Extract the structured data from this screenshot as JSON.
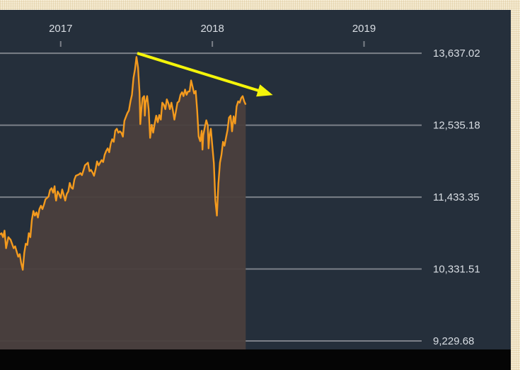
{
  "chart_data": {
    "type": "area",
    "title": "",
    "xlabel": "",
    "ylabel": "",
    "x_tick_labels": [
      "2017",
      "2018",
      "2019"
    ],
    "y_tick_labels": [
      "13,637.02",
      "12,535.18",
      "11,433.35",
      "10,331.51",
      "9,229.68"
    ],
    "y_ticks": [
      13637.02,
      12535.18,
      11433.35,
      10331.51,
      9229.68
    ],
    "ylim": [
      9100,
      14300
    ],
    "xlim": [
      2016.6,
      2019.38
    ],
    "grid": true,
    "colors": {
      "line": "#f39a1e",
      "area": "#4a3f3d",
      "trendline": "#f4f40a",
      "grid": "#7b8088",
      "plot_background": "#252f3b"
    },
    "series": [
      {
        "points": [
          [
            2016.6,
            10860
          ],
          [
            2016.61,
            10880
          ],
          [
            2016.62,
            10820
          ],
          [
            2016.63,
            10920
          ],
          [
            2016.64,
            10650
          ],
          [
            2016.655,
            10820
          ],
          [
            2016.67,
            10780
          ],
          [
            2016.69,
            10650
          ],
          [
            2016.7,
            10680
          ],
          [
            2016.72,
            10520
          ],
          [
            2016.73,
            10560
          ],
          [
            2016.74,
            10420
          ],
          [
            2016.75,
            10320
          ],
          [
            2016.76,
            10580
          ],
          [
            2016.77,
            10720
          ],
          [
            2016.78,
            10700
          ],
          [
            2016.79,
            10880
          ],
          [
            2016.8,
            10820
          ],
          [
            2016.81,
            11080
          ],
          [
            2016.82,
            11220
          ],
          [
            2016.83,
            11150
          ],
          [
            2016.84,
            11200
          ],
          [
            2016.85,
            11120
          ],
          [
            2016.86,
            11250
          ],
          [
            2016.87,
            11300
          ],
          [
            2016.88,
            11250
          ],
          [
            2016.89,
            11320
          ],
          [
            2016.9,
            11400
          ],
          [
            2016.92,
            11440
          ],
          [
            2016.93,
            11540
          ],
          [
            2016.94,
            11570
          ],
          [
            2016.95,
            11500
          ],
          [
            2016.96,
            11600
          ],
          [
            2016.965,
            11440
          ],
          [
            2016.97,
            11380
          ],
          [
            2016.98,
            11520
          ],
          [
            2016.99,
            11480
          ],
          [
            2017.0,
            11420
          ],
          [
            2017.01,
            11550
          ],
          [
            2017.02,
            11470
          ],
          [
            2017.03,
            11380
          ],
          [
            2017.04,
            11480
          ],
          [
            2017.05,
            11520
          ],
          [
            2017.06,
            11650
          ],
          [
            2017.07,
            11580
          ],
          [
            2017.08,
            11560
          ],
          [
            2017.09,
            11700
          ],
          [
            2017.1,
            11760
          ],
          [
            2017.12,
            11780
          ],
          [
            2017.13,
            11800
          ],
          [
            2017.14,
            11770
          ],
          [
            2017.15,
            11840
          ],
          [
            2017.16,
            11920
          ],
          [
            2017.17,
            11940
          ],
          [
            2017.18,
            11960
          ],
          [
            2017.19,
            11830
          ],
          [
            2017.2,
            11850
          ],
          [
            2017.21,
            11810
          ],
          [
            2017.22,
            11760
          ],
          [
            2017.23,
            11860
          ],
          [
            2017.24,
            11980
          ],
          [
            2017.25,
            11920
          ],
          [
            2017.26,
            11960
          ],
          [
            2017.27,
            12000
          ],
          [
            2017.28,
            11970
          ],
          [
            2017.29,
            12080
          ],
          [
            2017.3,
            12140
          ],
          [
            2017.31,
            12180
          ],
          [
            2017.32,
            12120
          ],
          [
            2017.33,
            12250
          ],
          [
            2017.34,
            12320
          ],
          [
            2017.35,
            12280
          ],
          [
            2017.36,
            12450
          ],
          [
            2017.37,
            12480
          ],
          [
            2017.38,
            12420
          ],
          [
            2017.39,
            12440
          ],
          [
            2017.4,
            12420
          ],
          [
            2017.41,
            12360
          ],
          [
            2017.42,
            12600
          ],
          [
            2017.43,
            12660
          ],
          [
            2017.44,
            12720
          ],
          [
            2017.45,
            12760
          ],
          [
            2017.46,
            12900
          ],
          [
            2017.47,
            13000
          ],
          [
            2017.48,
            13260
          ],
          [
            2017.49,
            13390
          ],
          [
            2017.5,
            13580
          ],
          [
            2017.51,
            13420
          ],
          [
            2017.52,
            13040
          ],
          [
            2017.525,
            12550
          ],
          [
            2017.53,
            12720
          ],
          [
            2017.54,
            12950
          ],
          [
            2017.55,
            12980
          ],
          [
            2017.555,
            12680
          ],
          [
            2017.56,
            12880
          ],
          [
            2017.57,
            12980
          ],
          [
            2017.58,
            12780
          ],
          [
            2017.59,
            12340
          ],
          [
            2017.6,
            12540
          ],
          [
            2017.61,
            12420
          ],
          [
            2017.62,
            12560
          ],
          [
            2017.63,
            12680
          ],
          [
            2017.64,
            12580
          ],
          [
            2017.65,
            12690
          ],
          [
            2017.66,
            12620
          ],
          [
            2017.67,
            12880
          ],
          [
            2017.68,
            12850
          ],
          [
            2017.69,
            12780
          ],
          [
            2017.7,
            12930
          ],
          [
            2017.71,
            12870
          ],
          [
            2017.72,
            12780
          ],
          [
            2017.73,
            12880
          ],
          [
            2017.74,
            12760
          ],
          [
            2017.75,
            12620
          ],
          [
            2017.76,
            12750
          ],
          [
            2017.77,
            12880
          ],
          [
            2017.78,
            12900
          ],
          [
            2017.79,
            13000
          ],
          [
            2017.8,
            13040
          ],
          [
            2017.81,
            12980
          ],
          [
            2017.82,
            13080
          ],
          [
            2017.83,
            13000
          ],
          [
            2017.84,
            13050
          ],
          [
            2017.85,
            13050
          ],
          [
            2017.86,
            13220
          ],
          [
            2017.87,
            13120
          ],
          [
            2017.88,
            13020
          ],
          [
            2017.89,
            13060
          ],
          [
            2017.9,
            12760
          ],
          [
            2017.91,
            12360
          ],
          [
            2017.92,
            12290
          ],
          [
            2017.93,
            12450
          ],
          [
            2017.935,
            12160
          ],
          [
            2017.94,
            12380
          ],
          [
            2017.95,
            12500
          ],
          [
            2017.96,
            12610
          ],
          [
            2017.97,
            12530
          ],
          [
            2017.975,
            12180
          ],
          [
            2017.98,
            12350
          ],
          [
            2017.99,
            12480
          ],
          [
            2018.0,
            12220
          ],
          [
            2018.01,
            11950
          ],
          [
            2018.02,
            11380
          ],
          [
            2018.03,
            11150
          ],
          [
            2018.04,
            11640
          ],
          [
            2018.05,
            11960
          ],
          [
            2018.06,
            12080
          ],
          [
            2018.07,
            12280
          ],
          [
            2018.08,
            12220
          ],
          [
            2018.09,
            12340
          ],
          [
            2018.1,
            12460
          ],
          [
            2018.11,
            12650
          ],
          [
            2018.12,
            12680
          ],
          [
            2018.13,
            12440
          ],
          [
            2018.14,
            12670
          ],
          [
            2018.15,
            12560
          ],
          [
            2018.16,
            12820
          ],
          [
            2018.17,
            12900
          ],
          [
            2018.18,
            12880
          ],
          [
            2018.19,
            12950
          ],
          [
            2018.2,
            12980
          ],
          [
            2018.21,
            12900
          ],
          [
            2018.22,
            12850
          ]
        ]
      }
    ],
    "trendline": {
      "from": [
        2017.505,
        13637.02
      ],
      "to": [
        2018.31,
        13060
      ]
    }
  }
}
